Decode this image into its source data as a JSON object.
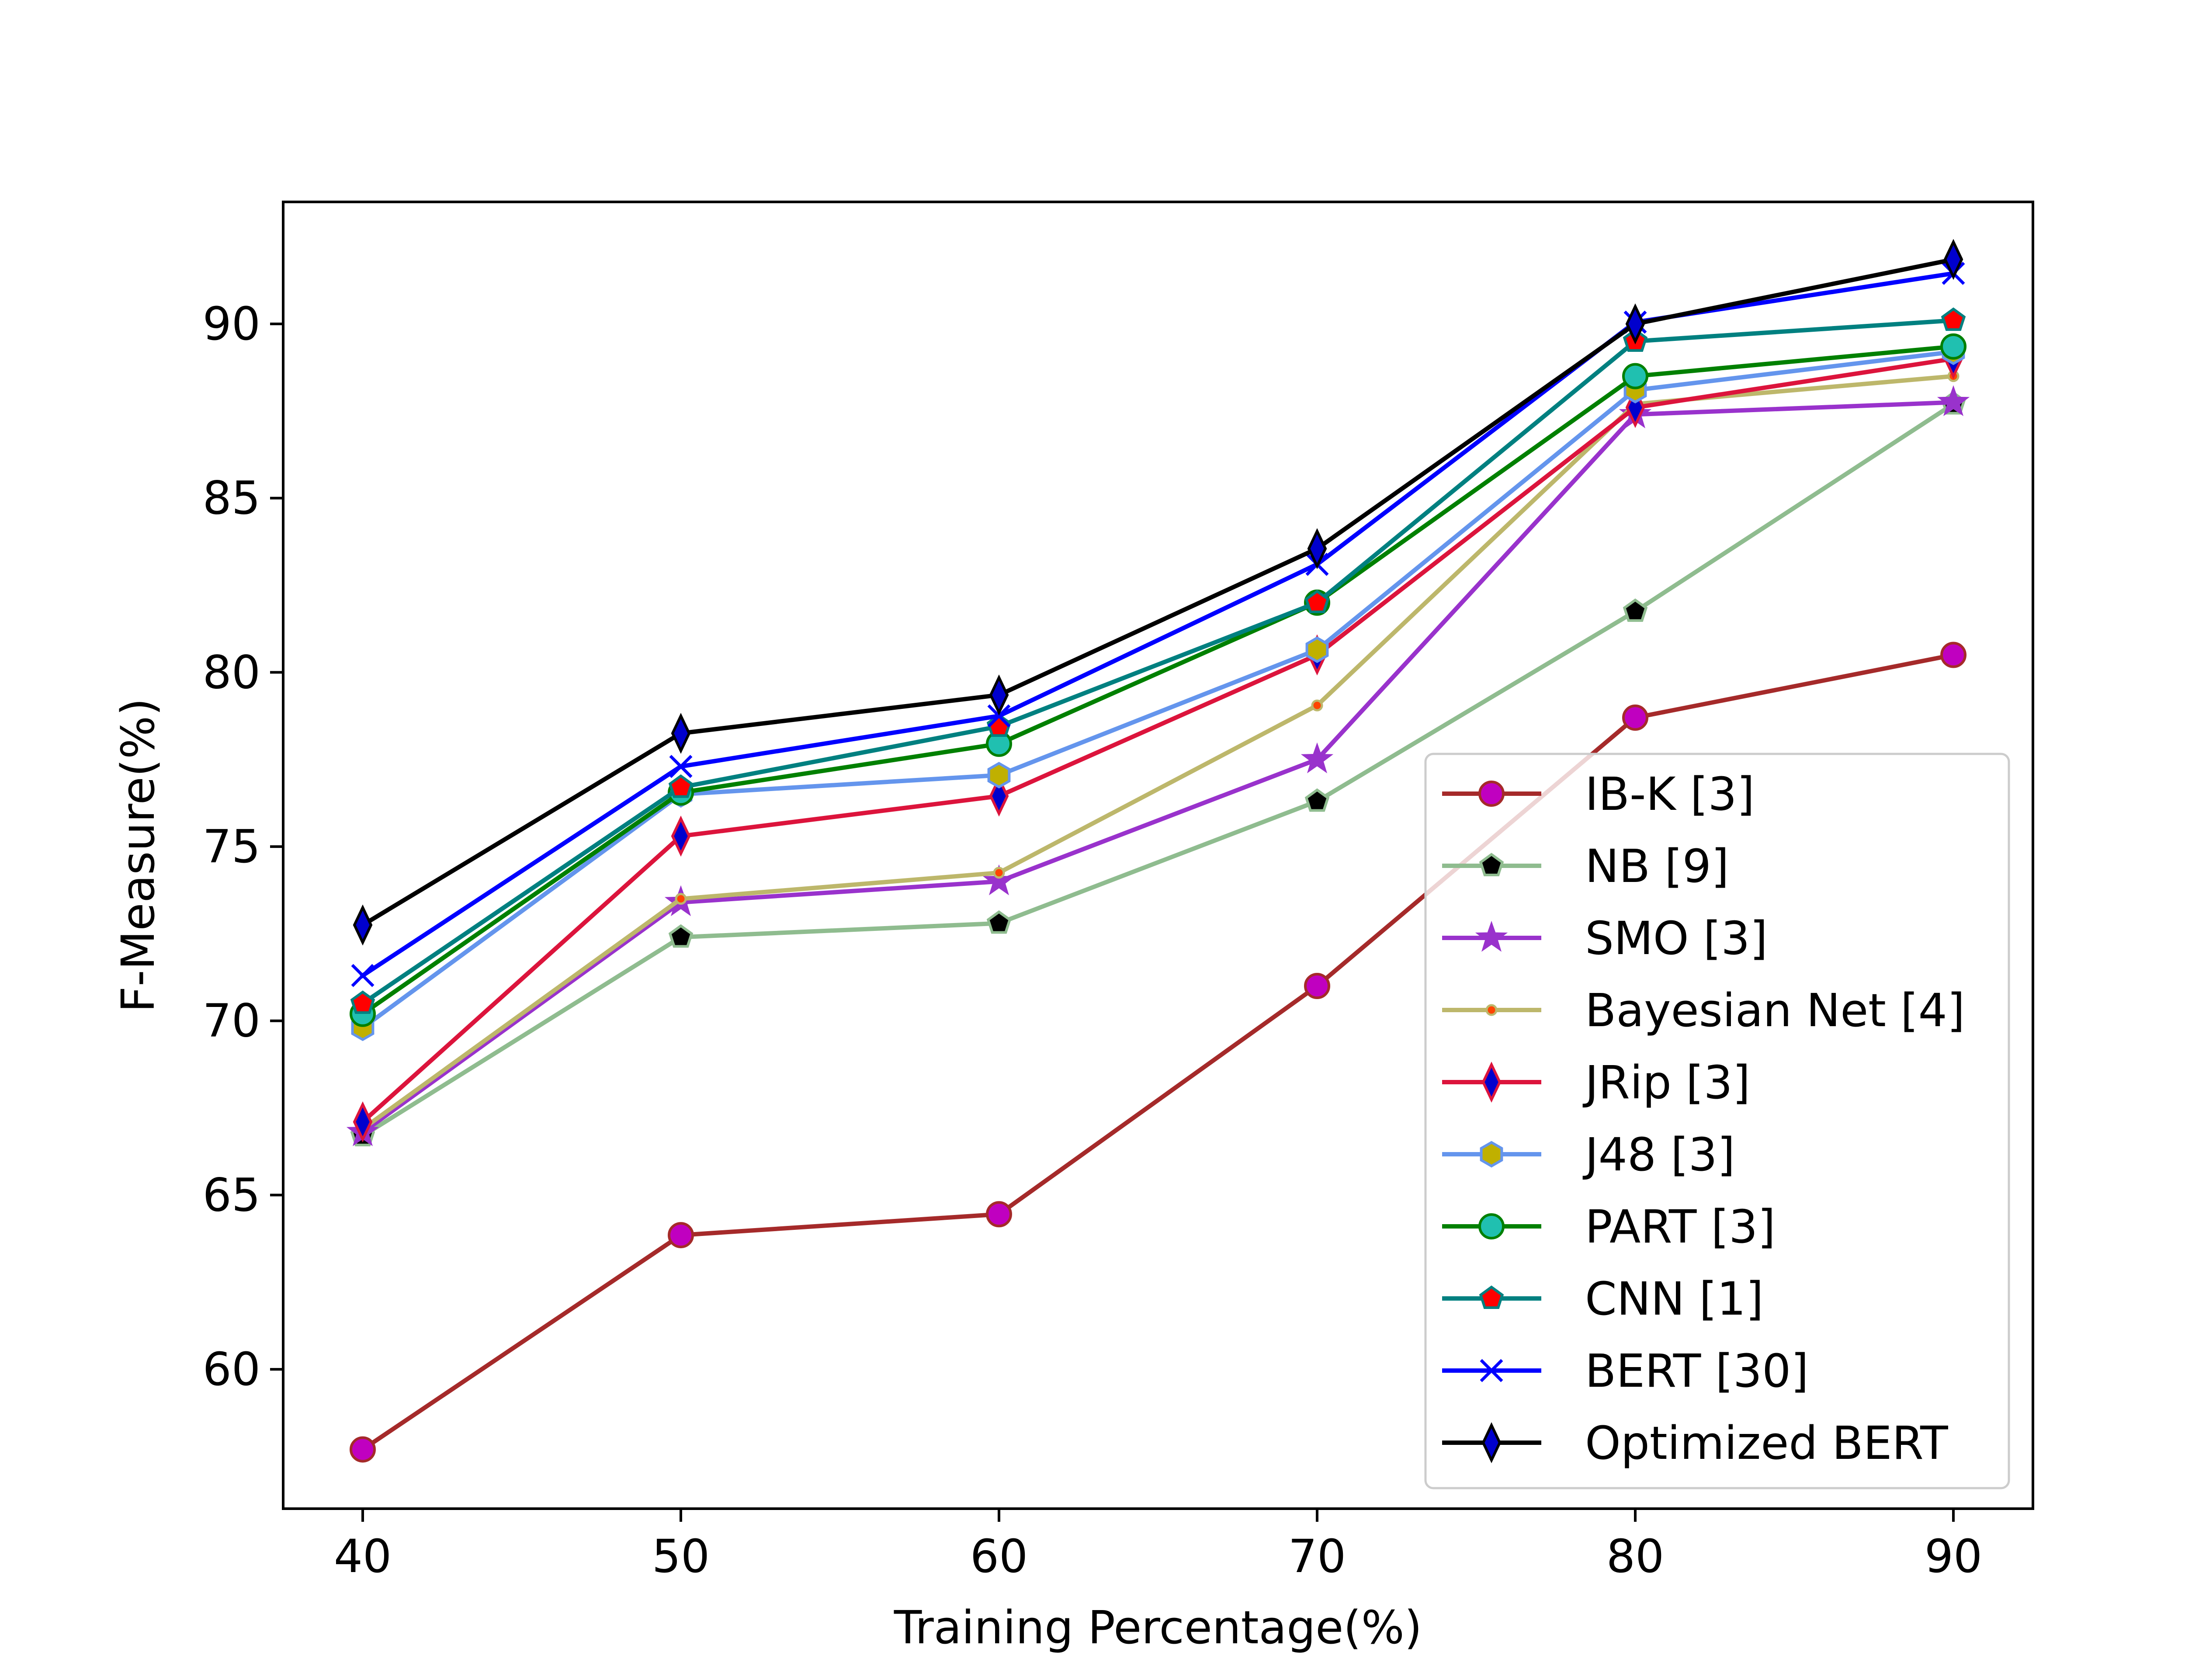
{
  "chart_data": {
    "type": "line",
    "title": "",
    "xlabel": "Training Percentage(%)",
    "ylabel": "F-Measure(%)",
    "x": [
      40,
      50,
      60,
      70,
      80,
      90
    ],
    "xlim": [
      37.5,
      92.5
    ],
    "ylim": [
      56,
      93.5
    ],
    "xticks": [
      40,
      50,
      60,
      70,
      80,
      90
    ],
    "yticks": [
      60,
      65,
      70,
      75,
      80,
      85,
      90
    ],
    "grid": false,
    "legend_position": "lower-right",
    "series": [
      {
        "name": "IB-K [3]",
        "values": [
          57.7,
          63.85,
          64.45,
          71.0,
          78.7,
          80.5
        ],
        "color": "#a52a2a",
        "marker": "circle",
        "marker_face": "#c000c0",
        "marker_edge": "#a52a2a"
      },
      {
        "name": "NB [9]",
        "values": [
          66.7,
          72.4,
          72.8,
          76.3,
          81.75,
          87.7
        ],
        "color": "#8fbc8f",
        "marker": "pentagon",
        "marker_face": "#000000",
        "marker_edge": "#8fbc8f"
      },
      {
        "name": "SMO [3]",
        "values": [
          66.8,
          73.4,
          74.0,
          77.5,
          87.4,
          87.75
        ],
        "color": "#9932cc",
        "marker": "star",
        "marker_face": "#9932cc",
        "marker_edge": "#9932cc"
      },
      {
        "name": "Bayesian Net [4]",
        "values": [
          66.9,
          73.5,
          74.25,
          79.05,
          87.7,
          88.5
        ],
        "color": "#bdb76b",
        "marker": "point",
        "marker_face": "#ff4500",
        "marker_edge": "#bdb76b"
      },
      {
        "name": "JRip [3]",
        "values": [
          67.1,
          75.3,
          76.45,
          80.5,
          87.6,
          89.0
        ],
        "color": "#dc143c",
        "marker": "thin-diamond",
        "marker_face": "#0000cd",
        "marker_edge": "#dc143c"
      },
      {
        "name": "J48 [3]",
        "values": [
          69.8,
          76.5,
          77.05,
          80.65,
          88.1,
          89.2
        ],
        "color": "#6495ed",
        "marker": "hexagon",
        "marker_face": "#c0b000",
        "marker_edge": "#6495ed"
      },
      {
        "name": "PART [3]",
        "values": [
          70.2,
          76.55,
          77.95,
          82.0,
          88.5,
          89.35
        ],
        "color": "#008000",
        "marker": "circle",
        "marker_face": "#20c0b0",
        "marker_edge": "#008000"
      },
      {
        "name": "CNN [1]",
        "values": [
          70.5,
          76.7,
          78.45,
          82.0,
          89.5,
          90.1
        ],
        "color": "#008080",
        "marker": "pentagon",
        "marker_face": "#ff0000",
        "marker_edge": "#008080"
      },
      {
        "name": "BERT [30]",
        "values": [
          71.3,
          77.3,
          78.75,
          83.1,
          90.05,
          91.45
        ],
        "color": "#0000ff",
        "marker": "x",
        "marker_face": "#0000ff",
        "marker_edge": "#0000ff"
      },
      {
        "name": "Optimized BERT",
        "values": [
          72.75,
          78.25,
          79.35,
          83.55,
          90.0,
          91.85
        ],
        "color": "#000000",
        "marker": "thin-diamond",
        "marker_face": "#0000cd",
        "marker_edge": "#000000"
      }
    ]
  }
}
